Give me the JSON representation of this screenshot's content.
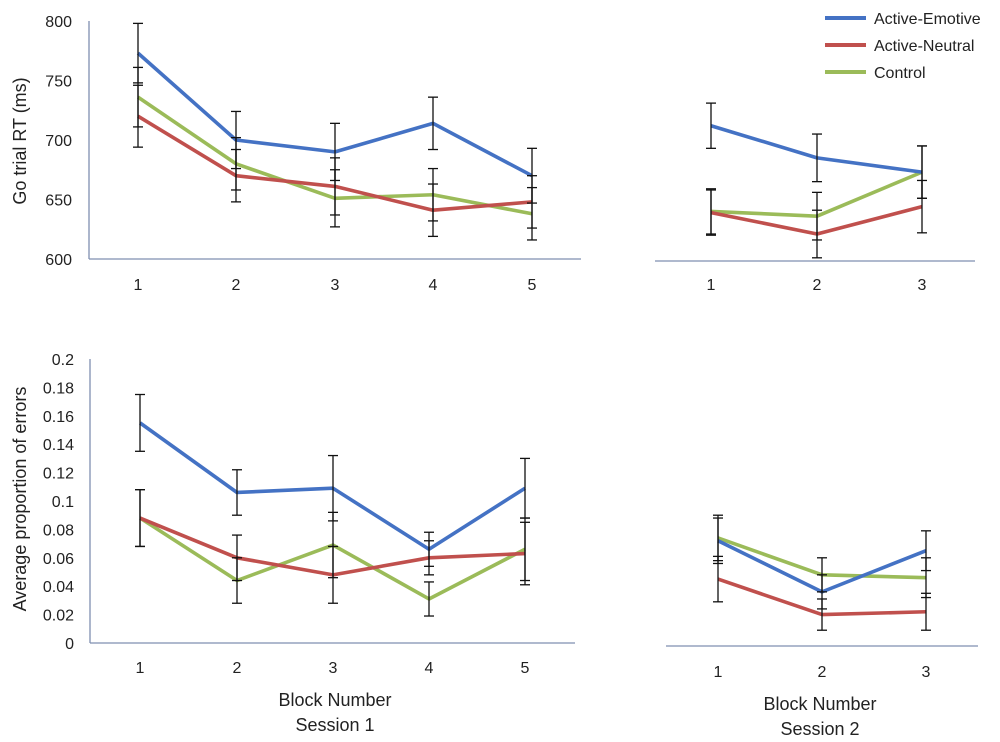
{
  "colors": {
    "active_emotive": "#4472C4",
    "active_neutral": "#C0504D",
    "control": "#9BBB59",
    "axis": "#7f8fb0",
    "text": "#222222"
  },
  "legend": {
    "placement": "top-right",
    "items": [
      "Active-Emotive",
      "Active-Neutral",
      "Control"
    ]
  },
  "chart_data": [
    {
      "id": "rt-session1",
      "type": "line",
      "title": "",
      "xlabel": "",
      "ylabel": "Go trial RT (ms)",
      "ylim": [
        600,
        800
      ],
      "yticks": [
        "600",
        "650",
        "700",
        "750",
        "800"
      ],
      "categories": [
        "1",
        "2",
        "3",
        "4",
        "5"
      ],
      "series": [
        {
          "name": "Active-Emotive",
          "values": [
            773,
            700,
            690,
            714,
            670
          ],
          "err": [
            25,
            24,
            24,
            22,
            23
          ]
        },
        {
          "name": "Active-Neutral",
          "values": [
            720,
            670,
            661,
            641,
            648
          ],
          "err": [
            26,
            22,
            24,
            22,
            22
          ]
        },
        {
          "name": "Control",
          "values": [
            736,
            680,
            651,
            654,
            638
          ],
          "err": [
            25,
            22,
            24,
            22,
            22
          ]
        }
      ]
    },
    {
      "id": "rt-session2",
      "type": "line",
      "title": "",
      "xlabel": "",
      "ylabel": "",
      "ylim": [
        600,
        800
      ],
      "categories": [
        "1",
        "2",
        "3"
      ],
      "series": [
        {
          "name": "Active-Emotive",
          "values": [
            712,
            685,
            673
          ],
          "err": [
            19,
            20,
            22
          ]
        },
        {
          "name": "Active-Neutral",
          "values": [
            639,
            621,
            644
          ],
          "err": [
            19,
            20,
            22
          ]
        },
        {
          "name": "Control",
          "values": [
            640,
            636,
            673
          ],
          "err": [
            19,
            20,
            22
          ]
        }
      ]
    },
    {
      "id": "err-session1",
      "type": "line",
      "title": "",
      "xlabel": "Block Number",
      "xlabel2": "Session 1",
      "ylabel": "Average proportion of errors",
      "ylim": [
        0,
        0.2
      ],
      "yticks": [
        "0",
        "0.02",
        "0.04",
        "0.06",
        "0.08",
        "0.1",
        "0.12",
        "0.14",
        "0.16",
        "0.18",
        "0.2"
      ],
      "categories": [
        "1",
        "2",
        "3",
        "4",
        "5"
      ],
      "series": [
        {
          "name": "Active-Emotive",
          "values": [
            0.155,
            0.106,
            0.109,
            0.066,
            0.109
          ],
          "err": [
            0.02,
            0.016,
            0.023,
            0.012,
            0.021
          ]
        },
        {
          "name": "Active-Neutral",
          "values": [
            0.088,
            0.06,
            0.048,
            0.06,
            0.063
          ],
          "err": [
            0.02,
            0.016,
            0.02,
            0.012,
            0.022
          ]
        },
        {
          "name": "Control",
          "values": [
            0.088,
            0.044,
            0.069,
            0.031,
            0.066
          ],
          "err": [
            0.02,
            0.016,
            0.023,
            0.012,
            0.022
          ]
        }
      ]
    },
    {
      "id": "err-session2",
      "type": "line",
      "title": "",
      "xlabel": "Block Number",
      "xlabel2": "Session 2",
      "ylabel": "",
      "ylim": [
        0,
        0.2
      ],
      "categories": [
        "1",
        "2",
        "3"
      ],
      "series": [
        {
          "name": "Active-Emotive",
          "values": [
            0.072,
            0.036,
            0.065
          ],
          "err": [
            0.016,
            0.012,
            0.014
          ]
        },
        {
          "name": "Active-Neutral",
          "values": [
            0.045,
            0.02,
            0.022
          ],
          "err": [
            0.016,
            0.011,
            0.013
          ]
        },
        {
          "name": "Control",
          "values": [
            0.074,
            0.048,
            0.046
          ],
          "err": [
            0.016,
            0.012,
            0.014
          ]
        }
      ]
    }
  ]
}
